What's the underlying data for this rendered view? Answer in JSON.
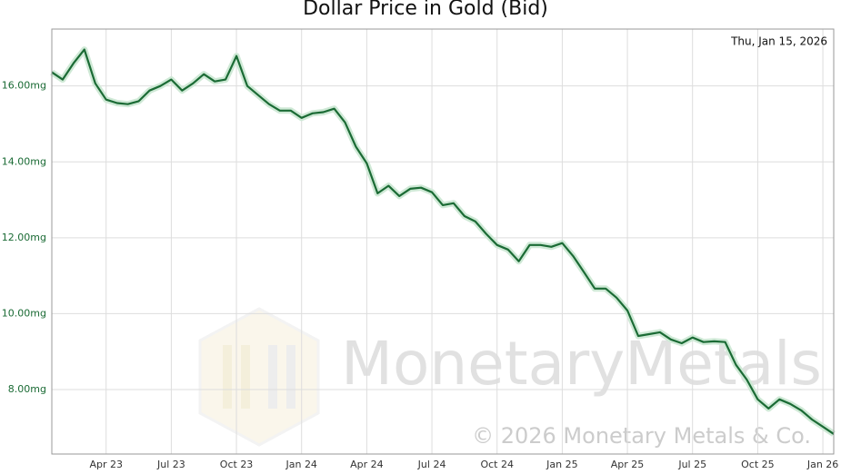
{
  "chart_data": {
    "type": "line",
    "title": "Dollar Price in Gold (Bid)",
    "date_label": "Thu, Jan 15, 2026",
    "watermark": "MonetaryMetals",
    "copyright": "© 2026 Monetary Metals & Co.",
    "x": [
      null,
      null,
      null,
      null,
      null,
      "Apr 23",
      null,
      null,
      null,
      null,
      null,
      "Jul 23",
      null,
      null,
      null,
      null,
      null,
      "Oct 23",
      null,
      null,
      null,
      null,
      null,
      "Jan 24",
      null,
      null,
      null,
      null,
      null,
      "Apr 24",
      null,
      null,
      null,
      null,
      null,
      "Jul 24",
      null,
      null,
      null,
      null,
      null,
      "Oct 24",
      null,
      null,
      null,
      null,
      null,
      "Jan 25",
      null,
      null,
      null,
      null,
      null,
      "Apr 25",
      null,
      null,
      null,
      null,
      null,
      "Jul 25",
      null,
      null,
      null,
      null,
      null,
      "Oct 25",
      null,
      null,
      null,
      null,
      null,
      "Jan 26",
      null
    ],
    "series": [
      {
        "color": "#1b6b35",
        "values": [
          16.36,
          16.17,
          16.6,
          16.96,
          16.07,
          15.64,
          15.55,
          15.52,
          15.6,
          15.88,
          16.0,
          16.17,
          15.88,
          16.07,
          16.31,
          16.12,
          16.17,
          16.79,
          16.0,
          15.76,
          15.52,
          15.35,
          15.35,
          15.16,
          15.28,
          15.31,
          15.4,
          15.04,
          14.4,
          13.96,
          13.17,
          13.37,
          13.1,
          13.29,
          13.32,
          13.2,
          12.86,
          12.91,
          12.57,
          12.43,
          12.1,
          11.81,
          11.69,
          11.38,
          11.81,
          11.81,
          11.76,
          11.86,
          11.52,
          11.09,
          10.66,
          10.66,
          10.42,
          10.08,
          9.41,
          9.46,
          9.51,
          9.32,
          9.22,
          9.37,
          9.25,
          9.27,
          9.25,
          8.65,
          8.26,
          7.74,
          7.5,
          7.74,
          7.62,
          7.45,
          7.21,
          7.02,
          6.83
        ]
      }
    ],
    "ylim": [
      6.3,
      17.5
    ],
    "yticks": [
      {
        "value": 8,
        "label": "8.00mg"
      },
      {
        "value": 10,
        "label": "10.00mg"
      },
      {
        "value": 12,
        "label": "12.00mg"
      },
      {
        "value": 14,
        "label": "14.00mg"
      },
      {
        "value": 16,
        "label": "16.00mg"
      }
    ],
    "grid": true
  }
}
